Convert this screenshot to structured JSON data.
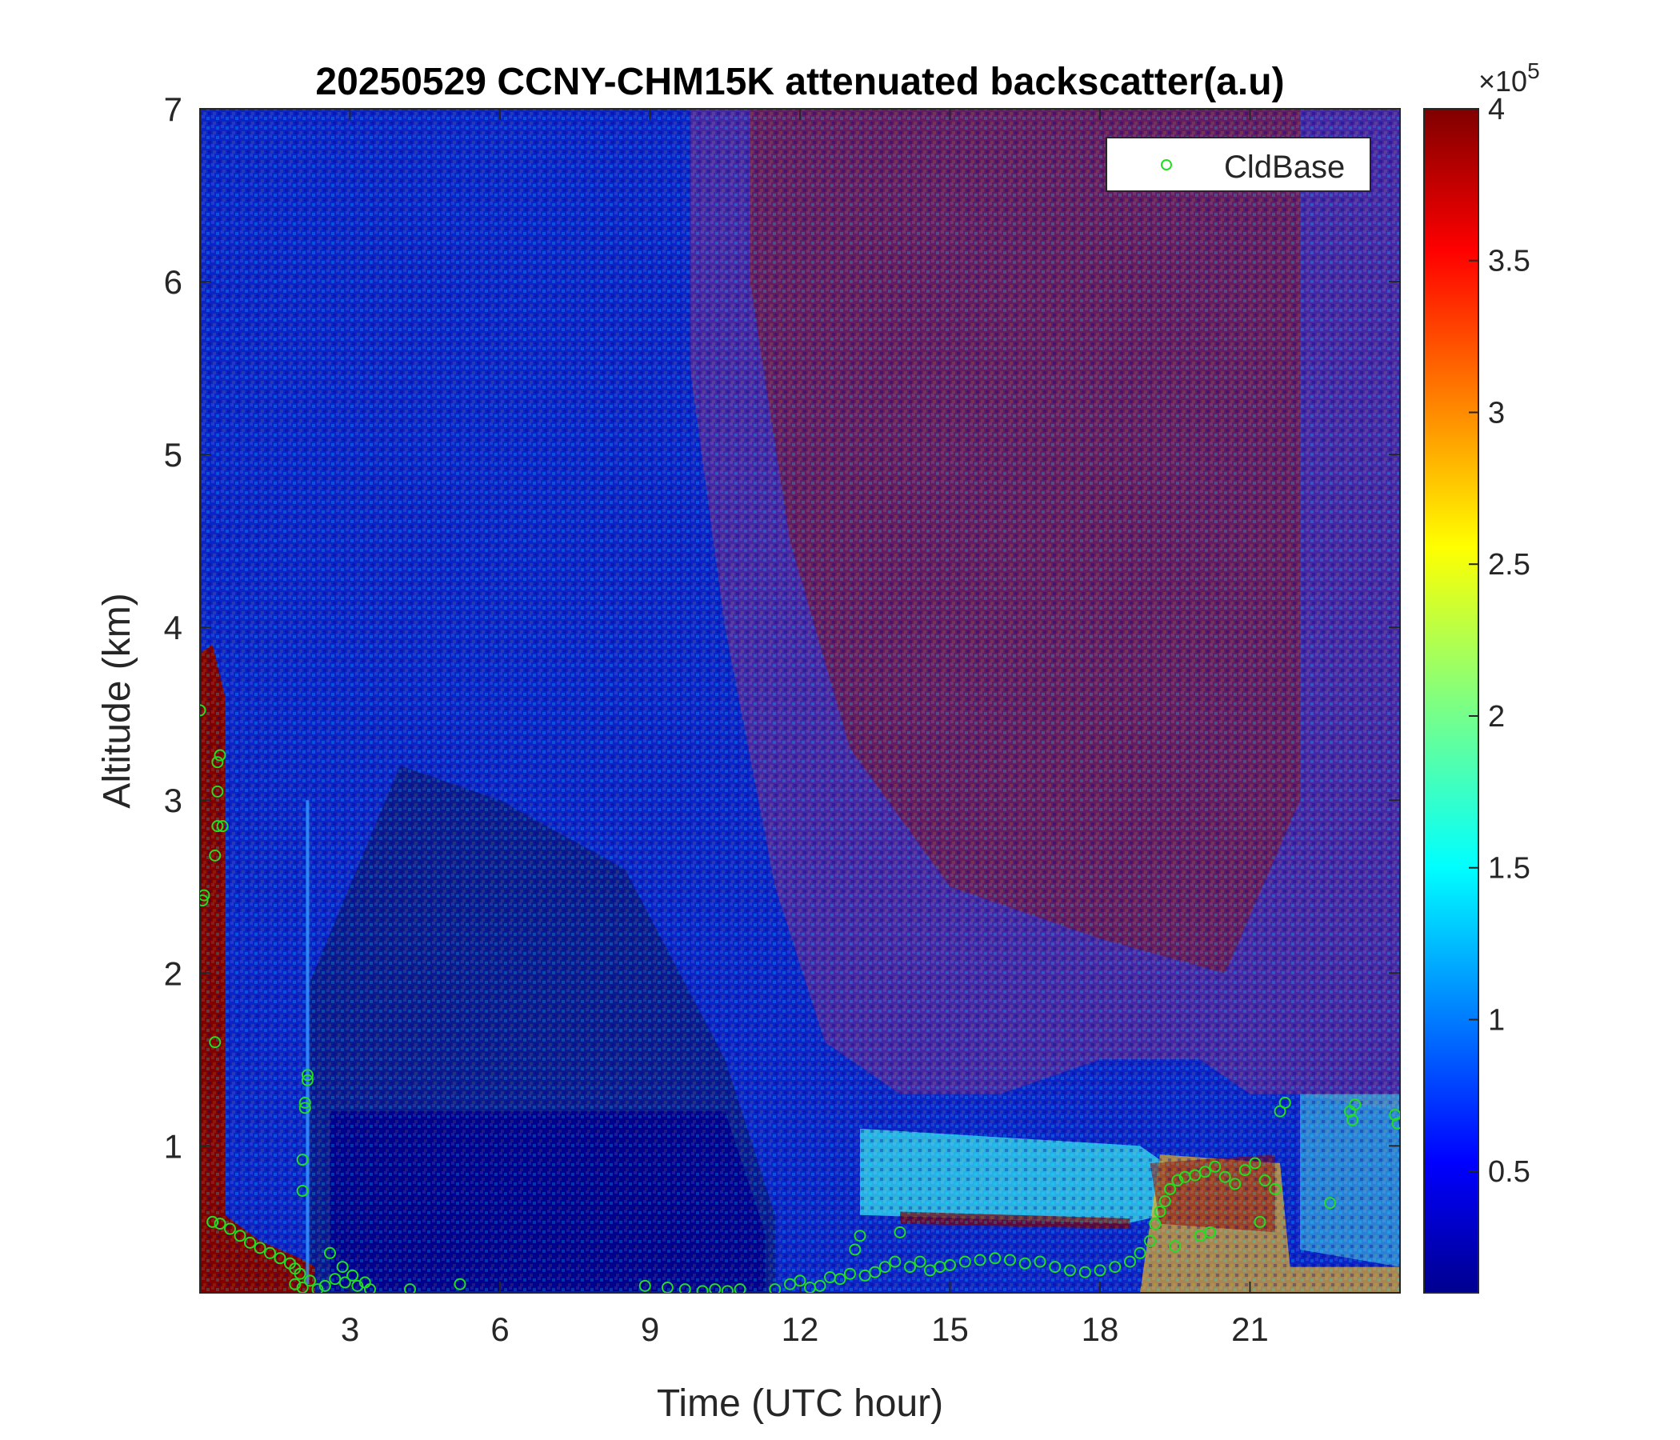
{
  "chart_data": {
    "type": "heatmap",
    "title": "20250529 CCNY-CHM15K attenuated backscatter(a.u)",
    "xlabel": "Time (UTC hour)",
    "ylabel": "Altitude (km)",
    "xlim": [
      0,
      24
    ],
    "ylim": [
      0.15,
      7
    ],
    "x_ticks": [
      3,
      6,
      9,
      12,
      15,
      18,
      21
    ],
    "x_tick_labels": [
      "3",
      "6",
      "9",
      "12",
      "15",
      "18",
      "21"
    ],
    "y_ticks": [
      1,
      2,
      3,
      4,
      5,
      6,
      7
    ],
    "y_tick_labels": [
      "1",
      "2",
      "3",
      "4",
      "5",
      "6",
      "7"
    ],
    "colorbar": {
      "colormap": "jet",
      "range": [
        0.1,
        4
      ],
      "ticks": [
        0.5,
        1,
        1.5,
        2,
        2.5,
        3,
        3.5,
        4
      ],
      "tick_labels": [
        "0.5",
        "1",
        "1.5",
        "2",
        "2.5",
        "3",
        "3.5",
        "4"
      ],
      "exponent_prefix": "×10",
      "exponent_value": "5"
    },
    "legend": {
      "position": "top-right",
      "entries": [
        {
          "name": "CldBase",
          "marker": "circle",
          "color": "#22dd22"
        }
      ]
    },
    "cloud_base_points": [
      [
        0.0,
        3.52
      ],
      [
        0.05,
        2.42
      ],
      [
        0.08,
        2.45
      ],
      [
        0.3,
        1.6
      ],
      [
        0.3,
        2.68
      ],
      [
        0.35,
        2.85
      ],
      [
        0.35,
        3.05
      ],
      [
        0.35,
        3.22
      ],
      [
        0.4,
        3.26
      ],
      [
        0.45,
        2.85
      ],
      [
        0.25,
        0.56
      ],
      [
        0.4,
        0.55
      ],
      [
        0.6,
        0.52
      ],
      [
        0.8,
        0.48
      ],
      [
        1.0,
        0.44
      ],
      [
        1.2,
        0.41
      ],
      [
        1.4,
        0.38
      ],
      [
        1.6,
        0.35
      ],
      [
        1.8,
        0.32
      ],
      [
        1.9,
        0.29
      ],
      [
        2.0,
        0.26
      ],
      [
        1.9,
        0.2
      ],
      [
        2.05,
        0.18
      ],
      [
        2.2,
        0.22
      ],
      [
        2.35,
        0.17
      ],
      [
        2.5,
        0.19
      ],
      [
        2.7,
        0.23
      ],
      [
        2.85,
        0.3
      ],
      [
        2.9,
        0.21
      ],
      [
        3.05,
        0.25
      ],
      [
        3.15,
        0.19
      ],
      [
        3.3,
        0.21
      ],
      [
        3.4,
        0.17
      ],
      [
        2.05,
        0.74
      ],
      [
        2.05,
        0.92
      ],
      [
        2.1,
        1.22
      ],
      [
        2.1,
        1.25
      ],
      [
        2.15,
        1.38
      ],
      [
        2.15,
        1.41
      ],
      [
        2.6,
        0.38
      ],
      [
        4.2,
        0.17
      ],
      [
        5.2,
        0.2
      ],
      [
        8.9,
        0.19
      ],
      [
        9.35,
        0.18
      ],
      [
        9.7,
        0.17
      ],
      [
        10.05,
        0.16
      ],
      [
        10.3,
        0.17
      ],
      [
        10.55,
        0.16
      ],
      [
        10.8,
        0.17
      ],
      [
        11.5,
        0.17
      ],
      [
        11.8,
        0.2
      ],
      [
        12.0,
        0.22
      ],
      [
        12.2,
        0.18
      ],
      [
        12.4,
        0.19
      ],
      [
        12.6,
        0.24
      ],
      [
        12.8,
        0.23
      ],
      [
        13.0,
        0.26
      ],
      [
        13.1,
        0.4
      ],
      [
        13.2,
        0.48
      ],
      [
        13.3,
        0.25
      ],
      [
        13.5,
        0.27
      ],
      [
        13.7,
        0.3
      ],
      [
        13.9,
        0.33
      ],
      [
        14.0,
        0.5
      ],
      [
        14.2,
        0.3
      ],
      [
        14.4,
        0.33
      ],
      [
        14.6,
        0.28
      ],
      [
        14.8,
        0.3
      ],
      [
        15.0,
        0.31
      ],
      [
        15.3,
        0.33
      ],
      [
        15.6,
        0.34
      ],
      [
        15.9,
        0.35
      ],
      [
        16.2,
        0.34
      ],
      [
        16.5,
        0.32
      ],
      [
        16.8,
        0.33
      ],
      [
        17.1,
        0.3
      ],
      [
        17.4,
        0.28
      ],
      [
        17.7,
        0.27
      ],
      [
        18.0,
        0.28
      ],
      [
        18.3,
        0.3
      ],
      [
        18.6,
        0.33
      ],
      [
        18.8,
        0.38
      ],
      [
        19.0,
        0.45
      ],
      [
        19.1,
        0.55
      ],
      [
        19.2,
        0.62
      ],
      [
        19.3,
        0.68
      ],
      [
        19.4,
        0.75
      ],
      [
        19.55,
        0.8
      ],
      [
        19.7,
        0.82
      ],
      [
        19.9,
        0.83
      ],
      [
        20.1,
        0.85
      ],
      [
        20.3,
        0.88
      ],
      [
        20.5,
        0.82
      ],
      [
        20.7,
        0.78
      ],
      [
        20.9,
        0.86
      ],
      [
        21.1,
        0.9
      ],
      [
        21.3,
        0.8
      ],
      [
        21.5,
        0.75
      ],
      [
        20.0,
        0.48
      ],
      [
        20.2,
        0.5
      ],
      [
        19.5,
        0.42
      ],
      [
        21.2,
        0.56
      ],
      [
        21.6,
        1.2
      ],
      [
        21.7,
        1.25
      ],
      [
        23.0,
        1.2
      ],
      [
        23.1,
        1.24
      ],
      [
        23.05,
        1.15
      ],
      [
        23.9,
        1.18
      ],
      [
        23.95,
        1.13
      ],
      [
        22.6,
        0.67
      ]
    ]
  }
}
